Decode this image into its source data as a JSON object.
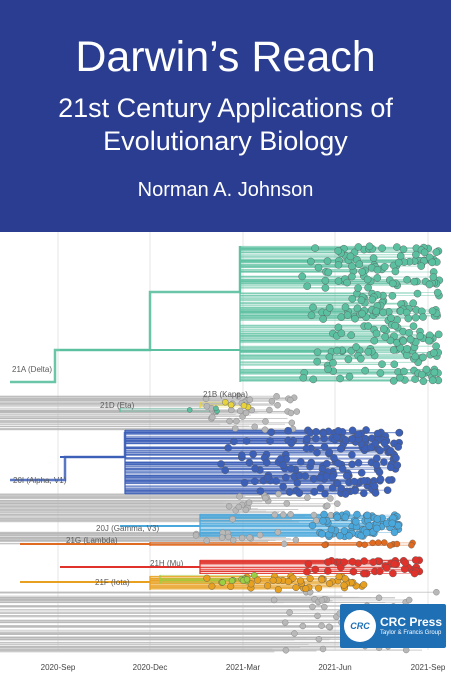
{
  "cover": {
    "title": "Darwin’s Reach",
    "subtitle_line1": "21st Century Applications of",
    "subtitle_line2": "Evolutionary Biology",
    "author": "Norman A. Johnson"
  },
  "tree": {
    "clade_labels": [
      "21A (Delta)",
      "21B (Kappa)",
      "21D (Eta)",
      "20I (Alpha, V1)",
      "20J (Gamma, V3)",
      "21G (Lambda)",
      "21H (Mu)",
      "21F (Iota)"
    ],
    "time_axis": [
      "2020-Sep",
      "2020-Dec",
      "2021-Mar",
      "2021-Jun",
      "2021-Sep"
    ]
  },
  "publisher": {
    "logo_text": "CRC",
    "name": "CRC Press",
    "tagline": "Taylor & Francis Group"
  },
  "colors": {
    "banner": "#2a3d91",
    "delta": "#5bc0a0",
    "alpha": "#3c5fb8",
    "gamma": "#4aa8dc",
    "mu": "#e0322b",
    "iota": "#e8a020",
    "lambda": "#e06a1f",
    "kappa": "#e8d43a",
    "grey": "#b8b8b8",
    "publisher_blue": "#1f6fb5"
  }
}
